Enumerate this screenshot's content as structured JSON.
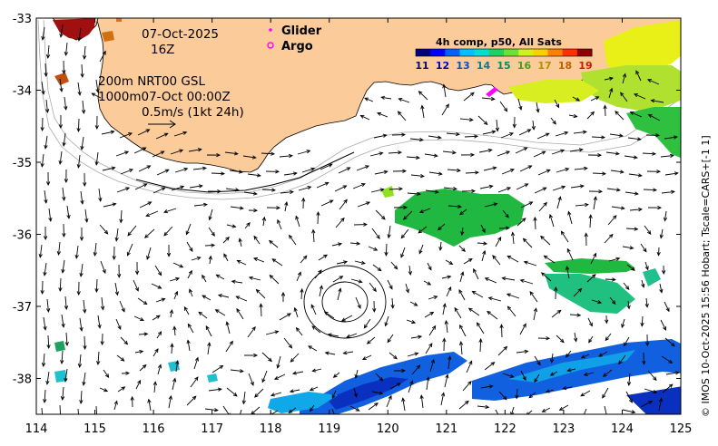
{
  "date": "07-Oct-2025",
  "hour": "16Z",
  "depth_line1": "200m  NRT00 GSL",
  "depth_line2": "1000m07-Oct 00:00Z",
  "scale_label": "0.5m/s (1kt 24h)",
  "legend": {
    "glider": "Glider",
    "argo": "Argo",
    "glider_color": "#ff00ff",
    "argo_color": "#ff00ff"
  },
  "colorbar": {
    "title": "4h comp, p50, All Sats",
    "ticks": [
      "11",
      "12",
      "13",
      "14",
      "15",
      "16",
      "17",
      "18",
      "19"
    ],
    "colors": [
      "#00007f",
      "#0000ff",
      "#0060ff",
      "#00c0ff",
      "#00e0d0",
      "#20d060",
      "#70e030",
      "#d0f020",
      "#ffd000",
      "#ff8000",
      "#ff3000",
      "#900000"
    ]
  },
  "x_ticks": [
    "114",
    "115",
    "116",
    "117",
    "118",
    "119",
    "120",
    "121",
    "122",
    "123",
    "124",
    "125"
  ],
  "y_ticks": [
    "-33",
    "-34",
    "-35",
    "-36",
    "-37",
    "-38"
  ],
  "credit": "© IMOS 10-Oct-2025 15:56 Hobart; Tscale=CARS+[-1 1]",
  "colors": {
    "land": "#fccb9a",
    "sea": "#ffffff",
    "arrow": "#000000"
  }
}
